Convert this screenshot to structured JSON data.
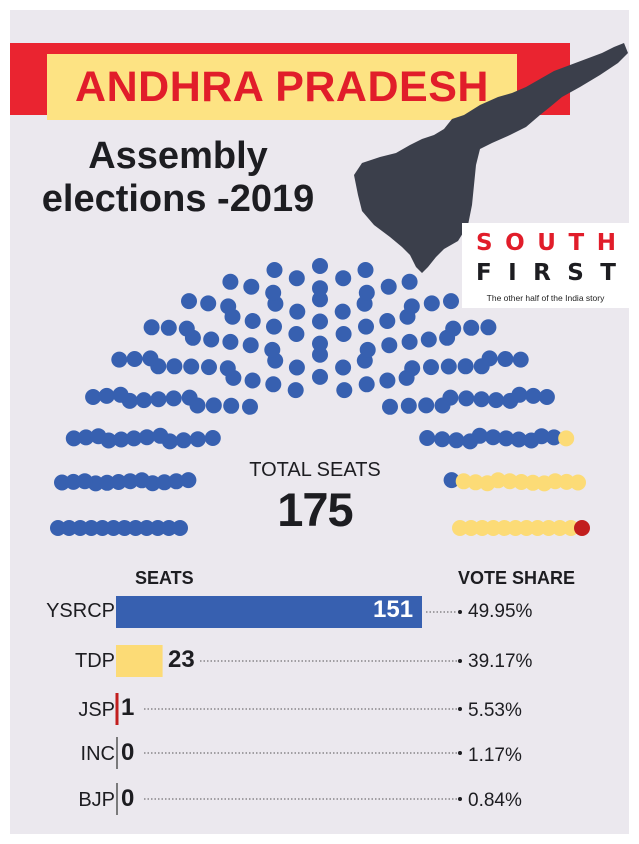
{
  "banner": {
    "title": "ANDHRA PRADESH"
  },
  "subtitle": {
    "line1": "Assembly",
    "line2": "elections -2019"
  },
  "logo": {
    "word1": [
      "S",
      "O",
      "U",
      "T",
      "H"
    ],
    "word2": [
      "F",
      "I",
      "R",
      "S",
      "T"
    ],
    "tagline": "The other half of the India story"
  },
  "colors": {
    "background": "#ebe8ee",
    "banner_red": "#ea2430",
    "banner_yellow": "#fde383",
    "YSRCP": "#3760b0",
    "TDP": "#fcdb76",
    "JSP": "#c21e1e",
    "INC": "#555555",
    "BJP": "#555555",
    "map": "#3b3f4b"
  },
  "icons": {
    "map": "andhra-pradesh-map-icon"
  },
  "total": {
    "label": "TOTAL SEATS",
    "value": "175"
  },
  "chart_data": {
    "type": "bar",
    "orientation": "horizontal",
    "title": "",
    "col_headers": {
      "seats": "SEATS",
      "vote_share": "VOTE SHARE"
    },
    "categories": [
      "YSRCP",
      "TDP",
      "JSP",
      "INC",
      "BJP"
    ],
    "values": [
      151,
      23,
      1,
      0,
      0
    ],
    "vote_share": [
      "49.95%",
      "39.17%",
      "5.53%",
      "1.17%",
      "0.84%"
    ],
    "total_seats": 175,
    "xlim": [
      0,
      151
    ]
  }
}
